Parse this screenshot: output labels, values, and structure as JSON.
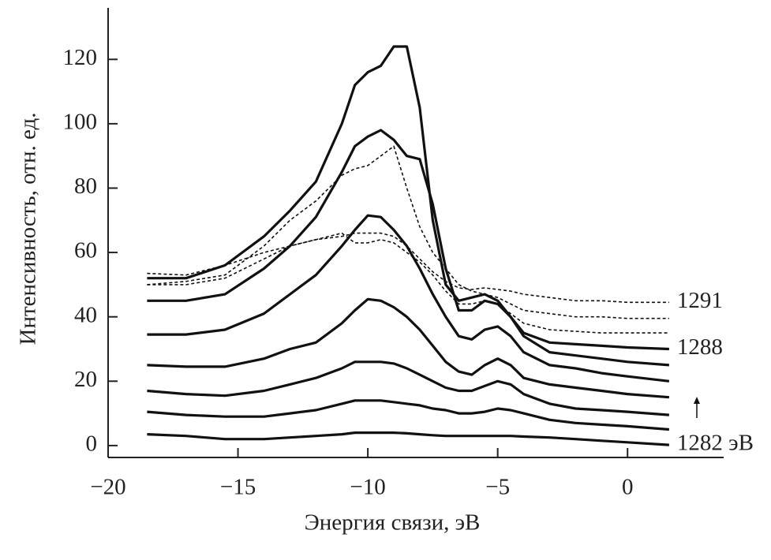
{
  "chart_data": {
    "type": "line",
    "xlabel": "Энергия связи, эВ",
    "ylabel": "Интенсивность, отн. ед.",
    "xlim": [
      -20,
      3.7
    ],
    "ylim": [
      -3.7,
      136
    ],
    "xticks": [
      {
        "value": -20,
        "label": "−20"
      },
      {
        "value": -15,
        "label": "−15"
      },
      {
        "value": -10,
        "label": "−10"
      },
      {
        "value": -5,
        "label": "−5"
      },
      0
    ],
    "yticks": [
      0,
      20,
      40,
      60,
      80,
      100,
      120
    ],
    "x": [
      -18.5,
      -17,
      -15.5,
      -14,
      -13,
      -12,
      -11,
      -10.5,
      -10,
      -9.5,
      -9,
      -8.5,
      -8,
      -7.5,
      -7,
      -6.5,
      -6,
      -5.5,
      -5,
      -4.5,
      -4,
      -3,
      -2,
      -1,
      0,
      1.6
    ],
    "series": [
      {
        "name": "1282 эВ",
        "color": "#111",
        "dashed": false,
        "values": [
          3.5,
          3,
          2,
          2,
          2.5,
          3,
          3.5,
          4,
          4,
          4,
          4,
          3.8,
          3.5,
          3.2,
          3,
          3,
          3,
          3,
          3,
          3,
          2.8,
          2.5,
          2,
          1.5,
          1,
          0.2
        ]
      },
      {
        "color": "#111",
        "dashed": false,
        "values": [
          10.5,
          9.5,
          9,
          9,
          10,
          11,
          13,
          14,
          14,
          14,
          13.5,
          13,
          12.5,
          11.5,
          11,
          10,
          10,
          10.5,
          11.5,
          11,
          10,
          8,
          7,
          6.5,
          6,
          5
        ]
      },
      {
        "color": "#111",
        "dashed": false,
        "values": [
          17,
          16,
          15.5,
          17,
          19,
          21,
          24,
          26,
          26,
          26,
          25.5,
          24,
          22,
          20,
          18,
          17,
          17,
          18.5,
          20,
          19,
          16,
          13,
          11.5,
          11,
          10.5,
          9.5
        ]
      },
      {
        "color": "#111",
        "dashed": false,
        "values": [
          25,
          24.5,
          24.5,
          27,
          30,
          32,
          38,
          42,
          45.5,
          45,
          43,
          40,
          36,
          31,
          26,
          23,
          22,
          25,
          27,
          25,
          21,
          19,
          18,
          17,
          16,
          15
        ]
      },
      {
        "color": "#111",
        "dashed": false,
        "values": [
          34.5,
          34.5,
          36,
          41,
          47,
          53,
          62,
          67,
          71.5,
          71,
          67,
          62,
          55,
          47,
          40,
          34,
          33,
          36,
          37,
          34,
          29,
          25,
          24,
          22.5,
          21.5,
          20
        ]
      },
      {
        "color": "#111",
        "dashed": false,
        "values": [
          45,
          45,
          47,
          55,
          62,
          71,
          85,
          93,
          96,
          98,
          95,
          90,
          89,
          75,
          55,
          42,
          42,
          45,
          44,
          40,
          34,
          29,
          28,
          27,
          26,
          25
        ]
      },
      {
        "name": "1288",
        "color": "#111",
        "dashed": false,
        "values": [
          52,
          52,
          56,
          65,
          73,
          82,
          100,
          112,
          116,
          118,
          124,
          124,
          105,
          70,
          50,
          45,
          46,
          47,
          45,
          40,
          35,
          32,
          31.5,
          31,
          30.5,
          30
        ]
      },
      {
        "color": "#111",
        "dashed": true,
        "values": [
          50,
          50,
          52,
          58,
          62,
          64,
          66,
          63,
          63,
          64,
          63,
          60,
          57,
          53,
          48,
          44,
          44,
          45,
          44,
          41,
          38,
          36,
          35.5,
          35,
          35,
          35
        ]
      },
      {
        "color": "#111",
        "dashed": true,
        "values": [
          50,
          51,
          53,
          62,
          70,
          76,
          84,
          86,
          87,
          90,
          93,
          80,
          68,
          60,
          55,
          50,
          48,
          47,
          46,
          44,
          42,
          41,
          40,
          40,
          39.5,
          39.5
        ]
      },
      {
        "name": "1291",
        "color": "#111",
        "dashed": true,
        "values": [
          53.5,
          53,
          56,
          60,
          62,
          64,
          65,
          66,
          66,
          66,
          65,
          62,
          58,
          54,
          51,
          49,
          48.5,
          49,
          48.5,
          48,
          47,
          46,
          45,
          45,
          44.5,
          44.5
        ]
      }
    ]
  }
}
